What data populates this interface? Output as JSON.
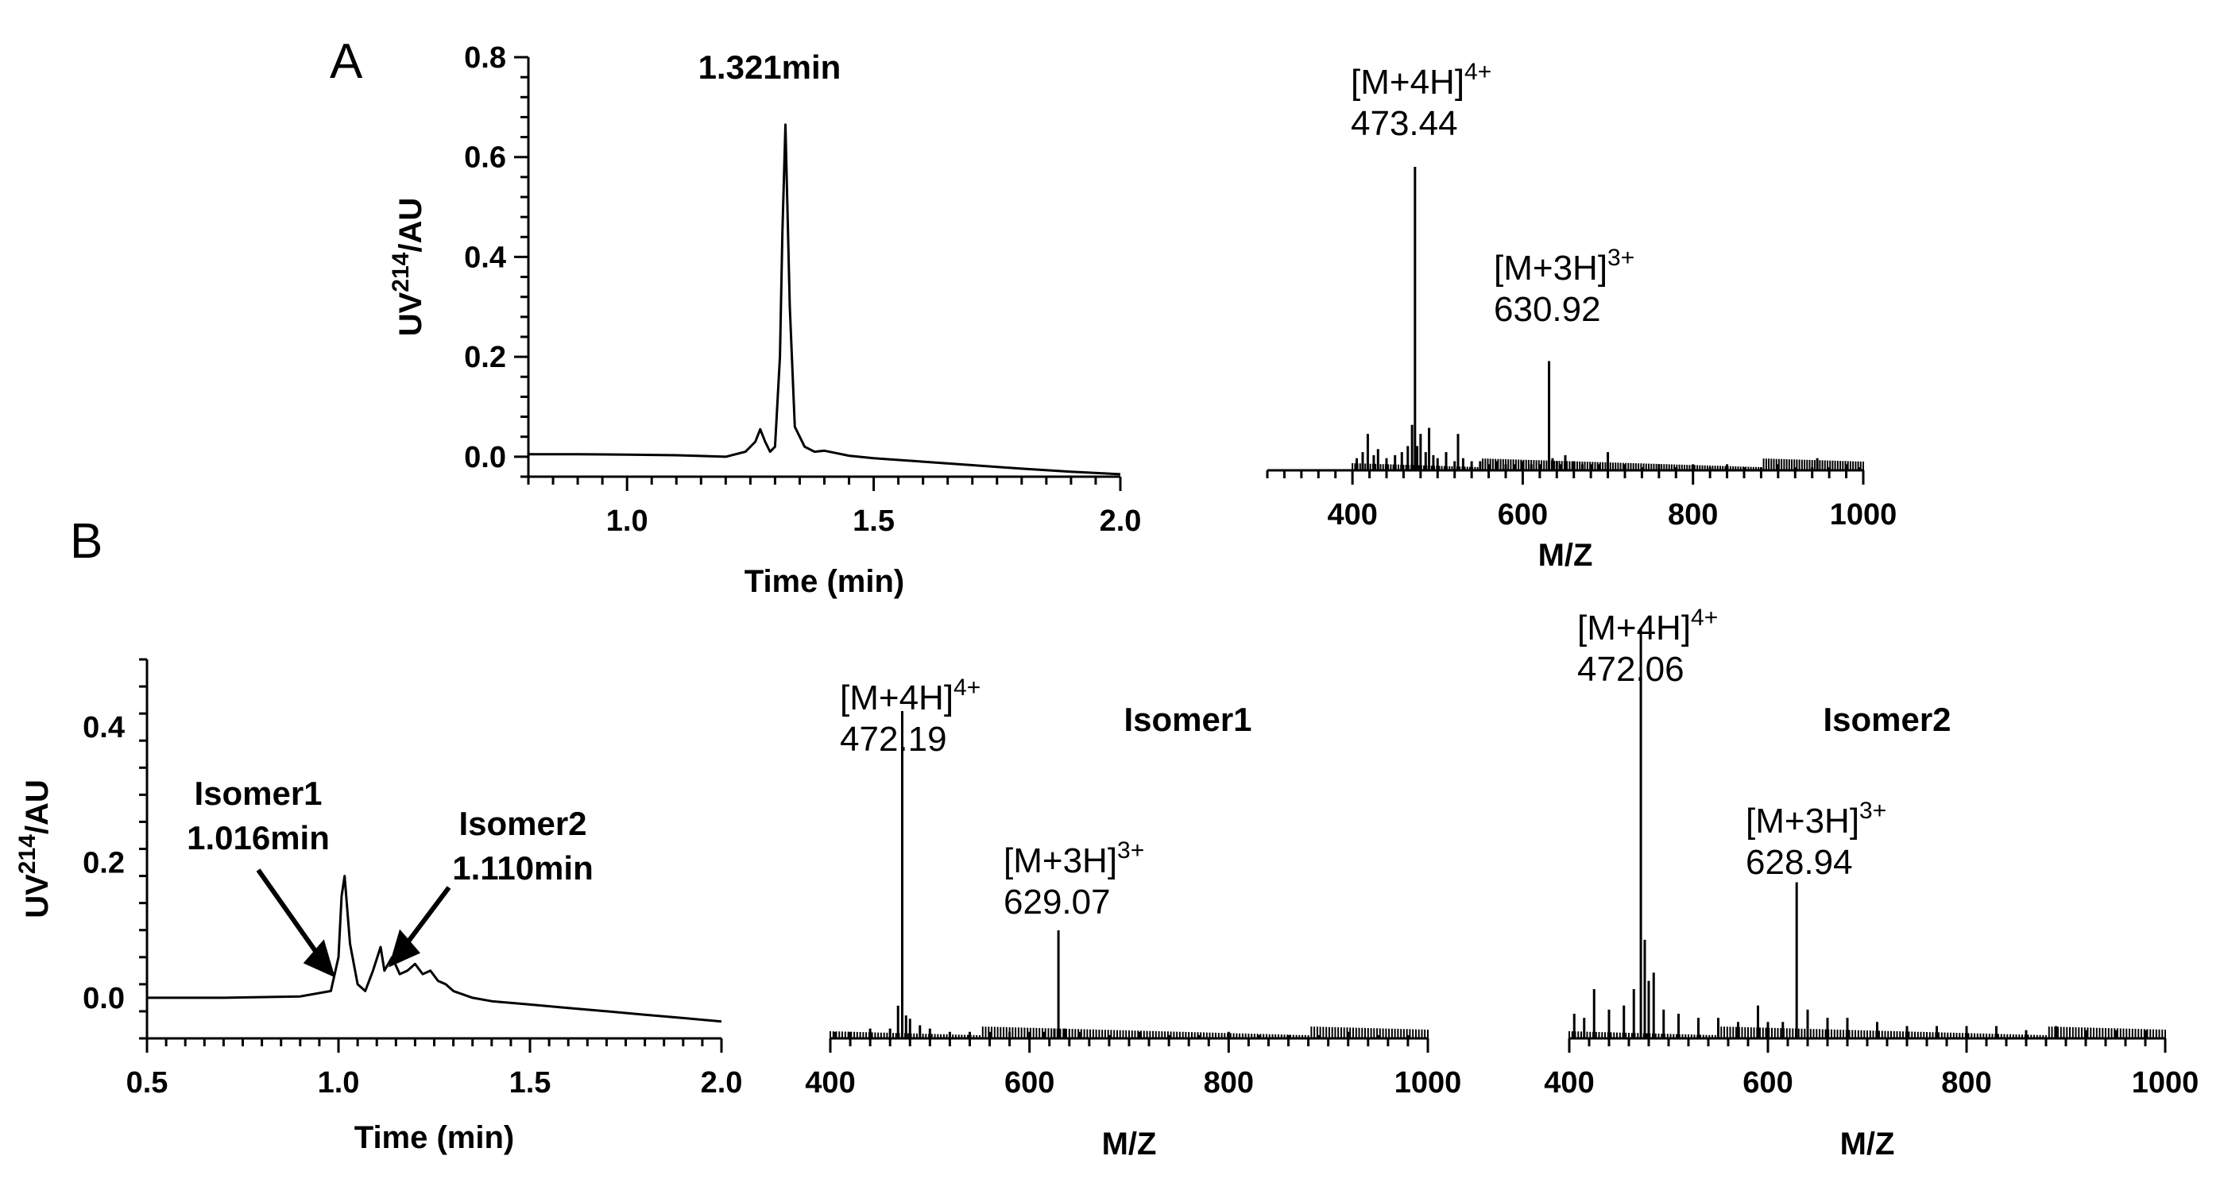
{
  "chart_data": [
    {
      "id": "A-chrom",
      "panel": "A",
      "type": "line",
      "title": "",
      "xlabel": "Time (min)",
      "ylabel": "UV214/AU",
      "ylabel_main": "UV",
      "ylabel_sup": "214",
      "ylabel_tail": "/AU",
      "xlim": [
        0.8,
        2.0
      ],
      "ylim": [
        -0.04,
        0.8
      ],
      "xticks": [
        1.0,
        1.5,
        2.0
      ],
      "xtick_labels": [
        "1.0",
        "1.5",
        "2.0"
      ],
      "yticks": [
        0.0,
        0.2,
        0.4,
        0.6,
        0.8
      ],
      "ytick_labels": [
        "0.0",
        "0.2",
        "0.4",
        "0.6",
        "0.8"
      ],
      "x": [
        0.8,
        0.9,
        1.0,
        1.1,
        1.2,
        1.24,
        1.26,
        1.27,
        1.28,
        1.29,
        1.3,
        1.31,
        1.315,
        1.321,
        1.33,
        1.34,
        1.36,
        1.38,
        1.4,
        1.42,
        1.45,
        1.5,
        1.6,
        1.7,
        1.8,
        1.9,
        2.0
      ],
      "y": [
        0.005,
        0.005,
        0.004,
        0.003,
        0.0,
        0.01,
        0.03,
        0.055,
        0.03,
        0.01,
        0.02,
        0.2,
        0.45,
        0.665,
        0.3,
        0.06,
        0.02,
        0.01,
        0.012,
        0.008,
        0.002,
        -0.003,
        -0.01,
        -0.017,
        -0.024,
        -0.03,
        -0.035
      ],
      "annotations": [
        {
          "text": "1.321min",
          "x": 1.321,
          "y": 0.665
        }
      ]
    },
    {
      "id": "A-ms",
      "panel": "A",
      "type": "bar",
      "title": "",
      "xlabel": "M/Z",
      "ylabel": "",
      "xlim": [
        300,
        1000
      ],
      "ylim": [
        0,
        1.0
      ],
      "xticks": [
        400,
        600,
        800,
        1000
      ],
      "xtick_labels": [
        "400",
        "600",
        "800",
        "1000"
      ],
      "x": [
        405,
        412,
        418,
        425,
        430,
        440,
        450,
        458,
        465,
        470,
        473.44,
        476,
        480,
        486,
        490,
        495,
        500,
        510,
        520,
        524,
        530,
        540,
        550,
        560,
        570,
        580,
        590,
        600,
        610,
        620,
        630.92,
        635,
        640,
        645,
        650,
        660,
        670,
        680,
        690,
        700,
        720,
        740,
        760,
        780,
        800,
        820,
        840,
        860,
        880,
        900,
        920,
        940,
        946,
        960,
        980,
        995
      ],
      "y": [
        0.04,
        0.06,
        0.12,
        0.05,
        0.07,
        0.04,
        0.05,
        0.06,
        0.08,
        0.15,
        1.0,
        0.08,
        0.12,
        0.06,
        0.14,
        0.05,
        0.04,
        0.06,
        0.03,
        0.12,
        0.04,
        0.03,
        0.03,
        0.02,
        0.03,
        0.02,
        0.02,
        0.03,
        0.02,
        0.02,
        0.36,
        0.04,
        0.03,
        0.02,
        0.05,
        0.03,
        0.02,
        0.02,
        0.02,
        0.06,
        0.02,
        0.01,
        0.02,
        0.01,
        0.02,
        0.01,
        0.02,
        0.01,
        0.01,
        0.02,
        0.01,
        0.01,
        0.04,
        0.01,
        0.02,
        0.01
      ],
      "annotations": [
        {
          "ion": "[M+4H]",
          "charge": "4+",
          "value": "473.44",
          "x": 473.44
        },
        {
          "ion": "[M+3H]",
          "charge": "3+",
          "value": "630.92",
          "x": 630.92
        }
      ]
    },
    {
      "id": "B-chrom",
      "panel": "B",
      "type": "line",
      "title": "",
      "xlabel": "Time (min)",
      "ylabel": "UV214/AU",
      "ylabel_main": "UV",
      "ylabel_sup": "214",
      "ylabel_tail": "/AU",
      "xlim": [
        0.5,
        2.0
      ],
      "ylim": [
        -0.06,
        0.5
      ],
      "xticks": [
        0.5,
        1.0,
        1.5,
        2.0
      ],
      "xtick_labels": [
        "0.5",
        "1.0",
        "1.5",
        "2.0"
      ],
      "yticks": [
        0.0,
        0.2,
        0.4
      ],
      "ytick_labels": [
        "0.0",
        "0.2",
        "0.4"
      ],
      "x": [
        0.5,
        0.7,
        0.9,
        0.98,
        1.0,
        1.008,
        1.016,
        1.03,
        1.05,
        1.07,
        1.09,
        1.11,
        1.12,
        1.14,
        1.16,
        1.18,
        1.2,
        1.22,
        1.24,
        1.26,
        1.28,
        1.3,
        1.35,
        1.4,
        1.5,
        1.6,
        1.7,
        1.8,
        1.9,
        2.0
      ],
      "y": [
        0.0,
        0.0,
        0.002,
        0.01,
        0.06,
        0.15,
        0.18,
        0.08,
        0.02,
        0.01,
        0.04,
        0.075,
        0.04,
        0.06,
        0.035,
        0.04,
        0.05,
        0.035,
        0.04,
        0.025,
        0.02,
        0.01,
        0.0,
        -0.005,
        -0.01,
        -0.015,
        -0.02,
        -0.025,
        -0.03,
        -0.035
      ],
      "annotations": [
        {
          "name": "Isomer1",
          "time": "1.016min",
          "x": 1.016,
          "y": 0.18
        },
        {
          "name": "Isomer2",
          "time": "1.110min",
          "x": 1.11,
          "y": 0.075
        }
      ]
    },
    {
      "id": "B-ms1",
      "panel": "B",
      "type": "bar",
      "title": "Isomer1",
      "xlabel": "M/Z",
      "ylabel": "",
      "xlim": [
        400,
        1000
      ],
      "ylim": [
        0,
        1.0
      ],
      "xticks": [
        400,
        600,
        800,
        1000
      ],
      "xtick_labels": [
        "400",
        "600",
        "800",
        "1000"
      ],
      "x": [
        405,
        420,
        440,
        460,
        468,
        472.19,
        476,
        480,
        490,
        500,
        520,
        540,
        560,
        580,
        600,
        615,
        625,
        629.07,
        635,
        650,
        680,
        710,
        740,
        770,
        800,
        830,
        860,
        890,
        920,
        950,
        980
      ],
      "y": [
        0.02,
        0.02,
        0.03,
        0.03,
        0.1,
        1.0,
        0.07,
        0.06,
        0.04,
        0.03,
        0.02,
        0.02,
        0.02,
        0.02,
        0.02,
        0.02,
        0.03,
        0.33,
        0.03,
        0.02,
        0.01,
        0.02,
        0.01,
        0.01,
        0.02,
        0.01,
        0.01,
        0.01,
        0.02,
        0.01,
        0.01
      ],
      "annotations": [
        {
          "ion": "[M+4H]",
          "charge": "4+",
          "value": "472.19",
          "x": 472.19
        },
        {
          "ion": "[M+3H]",
          "charge": "3+",
          "value": "629.07",
          "x": 629.07
        }
      ]
    },
    {
      "id": "B-ms2",
      "panel": "B",
      "type": "bar",
      "title": "Isomer2",
      "xlabel": "M/Z",
      "ylabel": "",
      "xlim": [
        400,
        1000
      ],
      "ylim": [
        0,
        1.0
      ],
      "xticks": [
        400,
        600,
        800,
        1000
      ],
      "xtick_labels": [
        "400",
        "600",
        "800",
        "1000"
      ],
      "x": [
        405,
        415,
        425,
        440,
        455,
        465,
        472.06,
        476,
        480,
        485,
        495,
        510,
        530,
        550,
        570,
        590,
        600,
        615,
        628.94,
        640,
        660,
        680,
        710,
        740,
        770,
        800,
        830,
        860,
        890,
        920,
        950,
        980
      ],
      "y": [
        0.06,
        0.05,
        0.12,
        0.07,
        0.08,
        0.12,
        1.0,
        0.24,
        0.14,
        0.16,
        0.07,
        0.06,
        0.05,
        0.05,
        0.04,
        0.08,
        0.04,
        0.04,
        0.38,
        0.07,
        0.05,
        0.05,
        0.04,
        0.03,
        0.03,
        0.03,
        0.03,
        0.02,
        0.03,
        0.02,
        0.02,
        0.02
      ],
      "annotations": [
        {
          "ion": "[M+4H]",
          "charge": "4+",
          "value": "472.06",
          "x": 472.06
        },
        {
          "ion": "[M+3H]",
          "charge": "3+",
          "value": "628.94",
          "x": 628.94
        }
      ]
    }
  ],
  "panel_labels": {
    "a": "A",
    "b": "B"
  }
}
